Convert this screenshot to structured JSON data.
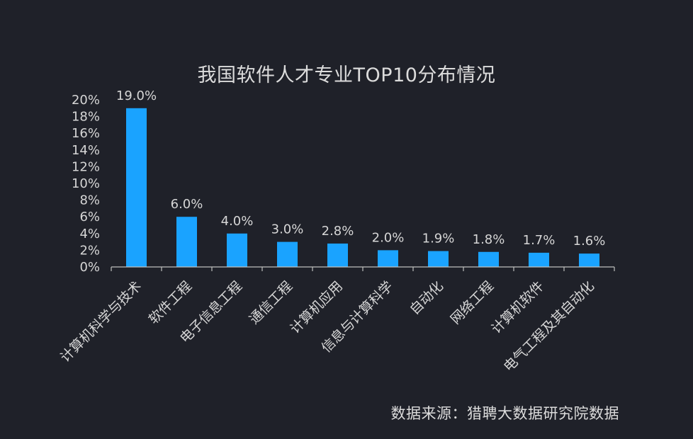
{
  "chart_data": {
    "type": "bar",
    "title": "我国软件人才专业TOP10分布情况",
    "categories": [
      "计算机科学与技术",
      "软件工程",
      "电子信息工程",
      "通信工程",
      "计算机应用",
      "信息与计算科学",
      "自动化",
      "网络工程",
      "计算机软件",
      "电气工程及其自动化"
    ],
    "values": [
      19.0,
      6.0,
      4.0,
      3.0,
      2.8,
      2.0,
      1.9,
      1.8,
      1.7,
      1.6
    ],
    "value_labels": [
      "19.0%",
      "6.0%",
      "4.0%",
      "3.0%",
      "2.8%",
      "2.0%",
      "1.9%",
      "1.8%",
      "1.7%",
      "1.6%"
    ],
    "y_ticks": [
      0,
      2,
      4,
      6,
      8,
      10,
      12,
      14,
      16,
      18,
      20
    ],
    "y_tick_labels": [
      "0%",
      "2%",
      "4%",
      "6%",
      "8%",
      "10%",
      "12%",
      "14%",
      "16%",
      "18%",
      "20%"
    ],
    "ylim": [
      0,
      20
    ],
    "xlabel": "",
    "ylabel": "",
    "grid": false,
    "bar_color": "#1aa3ff"
  },
  "source_note": "数据来源：猎聘大数据研究院数据",
  "colors": {
    "background": "#1f2129",
    "axis": "#bfbfbf",
    "text": "#d6d6d6"
  }
}
